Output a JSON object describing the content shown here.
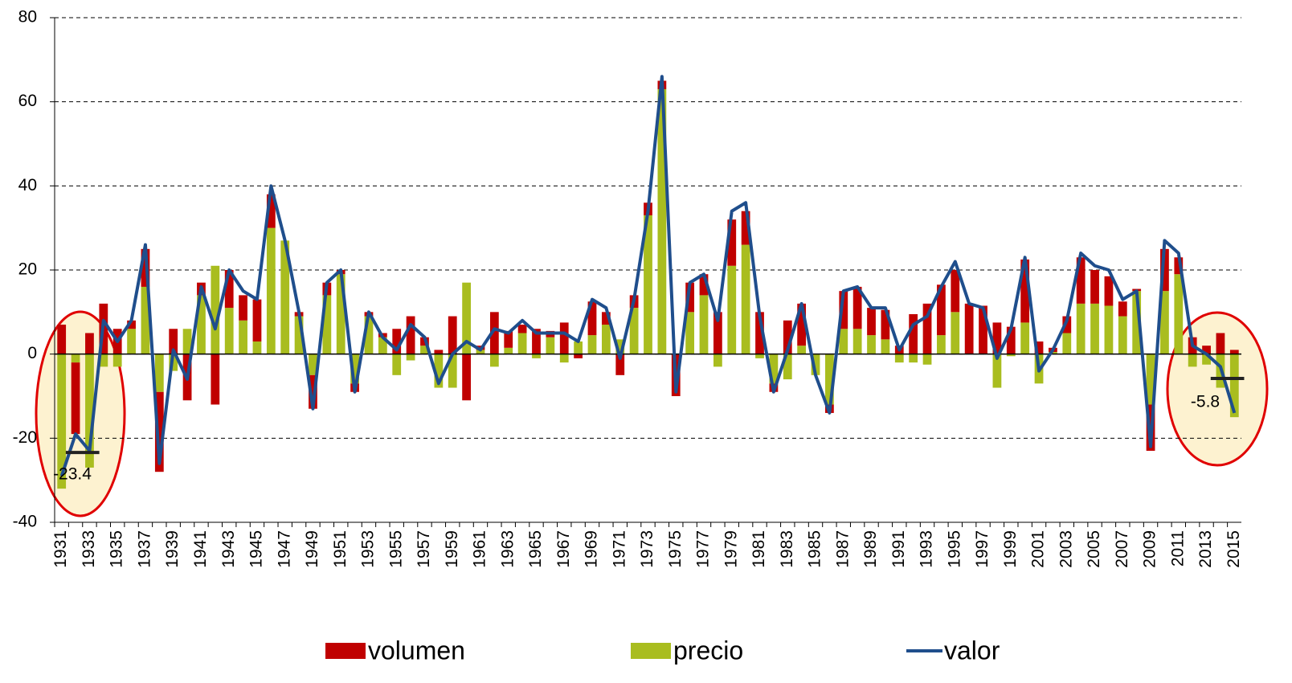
{
  "chart_data": {
    "type": "bar",
    "stacked": true,
    "categories": [
      "1931",
      null,
      "1933",
      null,
      "1935",
      null,
      "1937",
      null,
      "1939",
      null,
      "1941",
      null,
      "1943",
      null,
      "1945",
      null,
      "1947",
      null,
      "1949",
      null,
      "1951",
      null,
      "1953",
      null,
      "1955",
      null,
      "1957",
      null,
      "1959",
      null,
      "1961",
      null,
      "1963",
      null,
      "1965",
      null,
      "1967",
      null,
      "1969",
      null,
      "1971",
      null,
      "1973",
      null,
      "1975",
      null,
      "1977",
      null,
      "1979",
      null,
      "1981",
      null,
      "1983",
      null,
      "1985",
      null,
      "1987",
      null,
      "1989",
      null,
      "1991",
      null,
      "1993",
      null,
      "1995",
      null,
      "1997",
      null,
      "1999",
      null,
      "2001",
      null,
      "2003",
      null,
      "2005",
      null,
      "2007",
      null,
      "2009",
      null,
      "2011",
      null,
      "2013",
      null,
      "2015"
    ],
    "series": [
      {
        "name": "volumen",
        "type": "bar",
        "color": "#c00000",
        "values": [
          7,
          -17,
          5,
          12,
          6,
          2,
          9,
          -19,
          6,
          -11,
          3,
          -12,
          9,
          6,
          10,
          8,
          0,
          1,
          -8,
          3,
          1,
          -2,
          1,
          1,
          6,
          9,
          2,
          1,
          9,
          -11,
          1,
          10,
          4,
          2,
          6,
          1.5,
          7.5,
          -1,
          8,
          3,
          -5,
          3,
          3,
          2,
          -10,
          7,
          5,
          10,
          11,
          8,
          10,
          -2,
          8,
          10,
          0,
          -2,
          9,
          10,
          6.5,
          7,
          2,
          9.5,
          12,
          12,
          10,
          12,
          11.5,
          7.5,
          6.5,
          15,
          3,
          1,
          4,
          11,
          8,
          7,
          3.5,
          0.5,
          -11,
          10,
          4,
          4,
          2,
          5,
          1
        ]
      },
      {
        "name": "precio",
        "type": "bar",
        "color": "#a9bd1f",
        "values": [
          -32,
          -2,
          -27,
          -3,
          -3,
          6,
          16,
          -9,
          -4,
          6,
          14,
          21,
          11,
          8,
          3,
          30,
          27,
          9,
          -5,
          14,
          19,
          -7,
          9,
          4,
          -5,
          -1.5,
          2,
          -8,
          -8,
          17,
          1,
          -3,
          1.5,
          5,
          -1,
          4,
          -2,
          3,
          4.5,
          7,
          3.5,
          11,
          33,
          63,
          0,
          10,
          14,
          -3,
          21,
          26,
          -1,
          -7,
          -6,
          2,
          -5,
          -12,
          6,
          6,
          4.5,
          3.5,
          -2,
          -2,
          -2.5,
          4.5,
          10,
          0,
          0,
          -8,
          -0.5,
          7.5,
          -7,
          0.5,
          5,
          12,
          12,
          11.5,
          9,
          15,
          -12,
          15,
          19,
          -3,
          -2.5,
          -8,
          -15
        ]
      },
      {
        "name": "valor",
        "type": "line",
        "color": "#1f4e8c",
        "values": [
          -29,
          -19,
          -23,
          8,
          3,
          8,
          26,
          -26,
          1,
          -6,
          16,
          6,
          20,
          15,
          13,
          40,
          27,
          10,
          -13,
          17,
          20,
          -9,
          10,
          4,
          1,
          7,
          4,
          -7,
          0,
          3,
          1,
          6,
          5,
          8,
          5,
          5,
          5,
          3,
          13,
          11,
          -1,
          13,
          34,
          66,
          -9,
          17,
          19,
          8,
          34,
          36,
          9,
          -9,
          1,
          12,
          -5,
          -14,
          15,
          16,
          11,
          11,
          1,
          7,
          9,
          16,
          22,
          12,
          11,
          -1,
          6,
          23,
          -4,
          1,
          8,
          24,
          21,
          20,
          13,
          15,
          -22,
          27,
          24,
          2,
          0,
          -3,
          -14
        ]
      }
    ],
    "averages": [
      {
        "value": -23.4
      },
      {
        "value": -5.8
      }
    ],
    "ylim": [
      -40,
      80
    ],
    "yticks": [
      -40,
      -20,
      0,
      20,
      40,
      60,
      80
    ],
    "grid": true
  }
}
